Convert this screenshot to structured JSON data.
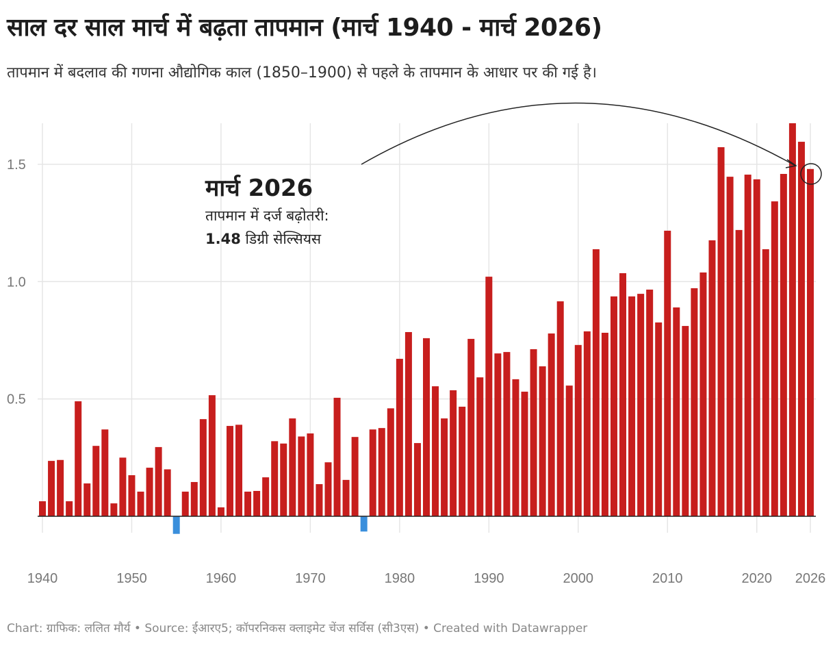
{
  "title": "साल दर साल मार्च में बढ़ता तापमान (मार्च 1940 - मार्च 2026)",
  "subtitle": "तापमान में बदलाव की गणना औद्योगिक काल (1850–1900) से पहले के तापमान के आधार पर की गई है।",
  "footer": "Chart: ग्राफिक: ललित मौर्य • Source: ईआरए5; कॉपरनिकस क्लाइमेट चेंज सर्विस (सी3एस) • Created with Datawrapper",
  "annotation": {
    "title": "मार्च 2026",
    "line1": "तापमान में दर्ज बढ़ोतरी:",
    "value": "1.48",
    "unit": "डिग्री सेल्सियस"
  },
  "colors": {
    "positive": "#c71e1d",
    "negative": "#3a8fdc",
    "grid": "#e5e5e5",
    "axis": "#222222"
  },
  "chart_data": {
    "type": "bar",
    "title": "साल दर साल मार्च में बढ़ता तापमान (मार्च 1940 - मार्च 2026)",
    "xlabel": "",
    "ylabel": "",
    "ylim": [
      -0.1,
      1.68
    ],
    "yticks": [
      "0.5",
      "1.0",
      "1.5"
    ],
    "ytick_values": [
      0.5,
      1.0,
      1.5
    ],
    "xticks": [
      "1940",
      "1950",
      "1960",
      "1970",
      "1980",
      "1990",
      "2000",
      "2010",
      "2020",
      "2026"
    ],
    "grid": true,
    "x_start": 1940,
    "values": [
      0.064,
      0.236,
      0.24,
      0.064,
      0.49,
      0.14,
      0.3,
      0.37,
      0.055,
      0.25,
      0.175,
      0.105,
      0.207,
      0.295,
      0.2,
      -0.075,
      0.105,
      0.146,
      0.414,
      0.516,
      0.038,
      0.385,
      0.39,
      0.105,
      0.108,
      0.166,
      0.32,
      0.31,
      0.417,
      0.34,
      0.353,
      0.137,
      0.23,
      0.505,
      0.155,
      0.338,
      -0.065,
      0.37,
      0.376,
      0.46,
      0.671,
      0.785,
      0.312,
      0.759,
      0.554,
      0.417,
      0.537,
      0.467,
      0.756,
      0.592,
      1.021,
      0.694,
      0.7,
      0.584,
      0.531,
      0.712,
      0.639,
      0.779,
      0.916,
      0.557,
      0.73,
      0.788,
      1.138,
      0.782,
      0.937,
      1.036,
      0.937,
      0.948,
      0.966,
      0.826,
      1.217,
      0.89,
      0.811,
      0.972,
      1.039,
      1.176,
      1.573,
      1.447,
      1.22,
      1.456,
      1.436,
      1.138,
      1.342,
      1.459,
      1.675,
      1.596,
      1.48
    ]
  }
}
